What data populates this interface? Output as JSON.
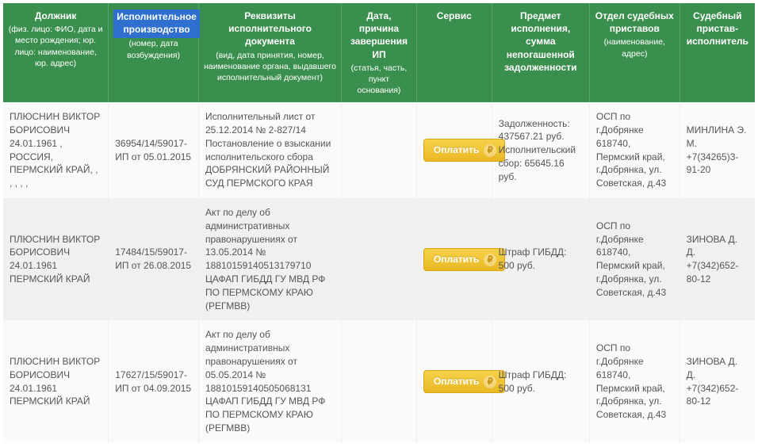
{
  "colwidths": [
    "14%",
    "12%",
    "19%",
    "10%",
    "10%",
    "13%",
    "12%",
    "10%"
  ],
  "header": [
    {
      "main": "Должник",
      "sub": "(физ. лицо: ФИО, дата и место рождения; юр. лицо: наименование, юр. адрес)",
      "selected": false
    },
    {
      "main": "Исполнительное производство",
      "sub": "(номер, дата возбуждения)",
      "selected": true
    },
    {
      "main": "Реквизиты исполнительного документа",
      "sub": "(вид, дата принятия, номер, наименование органа, выдавшего исполнительный документ)",
      "selected": false
    },
    {
      "main": "Дата, причина завершения ИП",
      "sub": "(статья, часть, пункт основания)",
      "selected": false
    },
    {
      "main": "Сервис",
      "sub": "",
      "selected": false
    },
    {
      "main": "Предмет исполнения, сумма непогашенной задолженности",
      "sub": "",
      "selected": false
    },
    {
      "main": "Отдел судебных приставов",
      "sub": "(наименование, адрес)",
      "selected": false
    },
    {
      "main": "Судебный пристав-исполнитель",
      "sub": "",
      "selected": false
    }
  ],
  "pay_label": "Оплатить",
  "rows": [
    {
      "cls": "even",
      "debtor": "ПЛЮСНИН ВИКТОР БОРИСОВИЧ 24.01.1961 , РОССИЯ, ПЕРМСКИЙ КРАЙ, , , , , ,",
      "ip": "36954/14/59017-ИП от 05.01.2015",
      "doc": "Исполнительный лист от 25.12.2014 № 2-827/14 Постановление о взыскании исполнительского сбора ДОБРЯНСКИЙ РАЙОННЫЙ СУД ПЕРМСКОГО КРАЯ",
      "end": "",
      "subject": "Задолженность: 437567.21 руб. Исполнительский сбор: 65645.16 руб.",
      "dept": "ОСП по г.Добрянке 618740, Пермский край, г.Добрянка, ул. Советская, д.43",
      "officer": "МИНЛИНА Э. М. +7(34265)3-91-20"
    },
    {
      "cls": "odd",
      "debtor": "ПЛЮСНИН ВИКТОР БОРИСОВИЧ 24.01.1961 ПЕРМСКИЙ КРАЙ",
      "ip": "17484/15/59017-ИП от 26.08.2015",
      "doc": "Акт по делу об административных правонарушениях от 13.05.2014 № 18810159140513179710 ЦАФАП ГИБДД ГУ МВД РФ ПО ПЕРМСКОМУ КРАЮ (РЕГМВВ)",
      "end": "",
      "subject": "Штраф ГИБДД: 500 руб.",
      "dept": "ОСП по г.Добрянке 618740, Пермский край, г.Добрянка, ул. Советская, д.43",
      "officer": "ЗИНОВА Д. Д. +7(342)652-80-12"
    },
    {
      "cls": "even",
      "debtor": "ПЛЮСНИН ВИКТОР БОРИСОВИЧ 24.01.1961 ПЕРМСКИЙ КРАЙ",
      "ip": "17627/15/59017-ИП от 04.09.2015",
      "doc": "Акт по делу об административных правонарушениях от 05.05.2014 № 18810159140505068131 ЦАФАП ГИБДД ГУ МВД РФ ПО ПЕРМСКОМУ КРАЮ (РЕГМВВ)",
      "end": "",
      "subject": "Штраф ГИБДД: 500 руб.",
      "dept": "ОСП по г.Добрянке 618740, Пермский край, г.Добрянка, ул. Советская, д.43",
      "officer": "ЗИНОВА Д. Д. +7(342)652-80-12"
    }
  ]
}
